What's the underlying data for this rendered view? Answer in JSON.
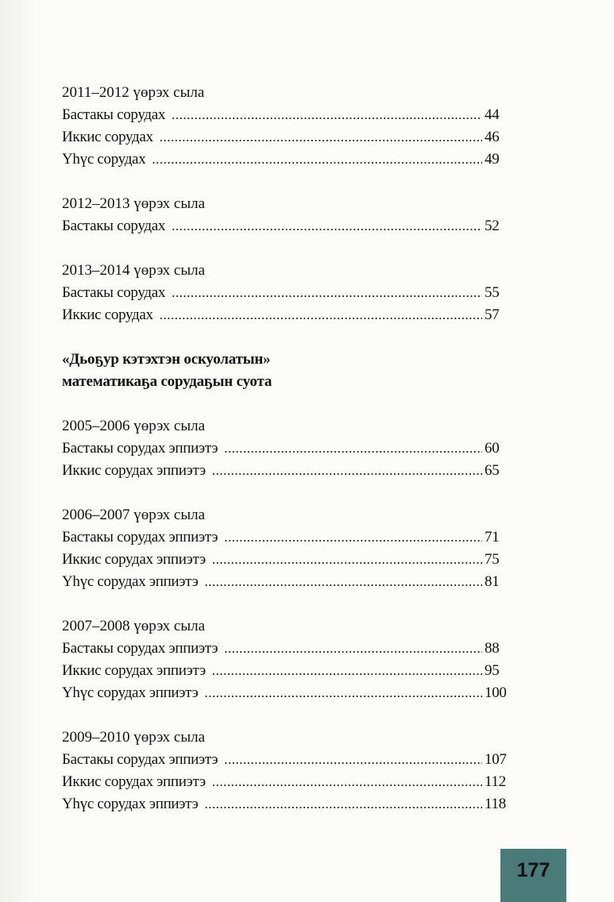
{
  "groups": [
    {
      "heading": "2011–2012 үөрэх сыла",
      "entries": [
        {
          "label": "Бастакы сорудах",
          "page": "44"
        },
        {
          "label": "Иккис сорудах",
          "page": "46"
        },
        {
          "label": "Үһүс сорудах",
          "page": "49"
        }
      ]
    },
    {
      "heading": "2012–2013 үөрэх сыла",
      "entries": [
        {
          "label": "Бастакы сорудах",
          "page": "52"
        }
      ]
    },
    {
      "heading": "2013–2014 үөрэх сыла",
      "entries": [
        {
          "label": "Бастакы сорудах",
          "page": "55"
        },
        {
          "label": "Иккис сорудах",
          "page": "57"
        }
      ]
    }
  ],
  "section_title": [
    "«Дьоҕур кэтэхтэн оскуолатын»",
    "математикаҕа сорудаҕын суота"
  ],
  "groups2": [
    {
      "heading": "2005–2006 үөрэх сыла",
      "entries": [
        {
          "label": "Бастакы сорудах эппиэтэ",
          "page": "60"
        },
        {
          "label": "Иккис сорудах эппиэтэ",
          "page": "65"
        }
      ]
    },
    {
      "heading": "2006–2007 үөрэх сыла",
      "entries": [
        {
          "label": "Бастакы сорудах эппиэтэ",
          "page": "71"
        },
        {
          "label": "Иккис сорудах эппиэтэ",
          "page": "75"
        },
        {
          "label": "Үһүс сорудах эппиэтэ",
          "page": "81"
        }
      ]
    },
    {
      "heading": "2007–2008 үөрэх сыла",
      "entries": [
        {
          "label": "Бастакы сорудах эппиэтэ",
          "page": "88"
        },
        {
          "label": "Иккис сорудах эппиэтэ",
          "page": "95"
        },
        {
          "label": "Үһүс сорудах эппиэтэ",
          "page": "100"
        }
      ]
    },
    {
      "heading": "2009–2010 үөрэх сыла",
      "entries": [
        {
          "label": "Бастакы сорудах эппиэтэ",
          "page": "107"
        },
        {
          "label": "Иккис сорудах эппиэтэ",
          "page": "112"
        },
        {
          "label": "Үһүс сорудах эппиэтэ",
          "page": "118"
        }
      ]
    }
  ],
  "page_number": "177",
  "colors": {
    "page_box": "#497b79",
    "paper": "#fcfcf8"
  }
}
